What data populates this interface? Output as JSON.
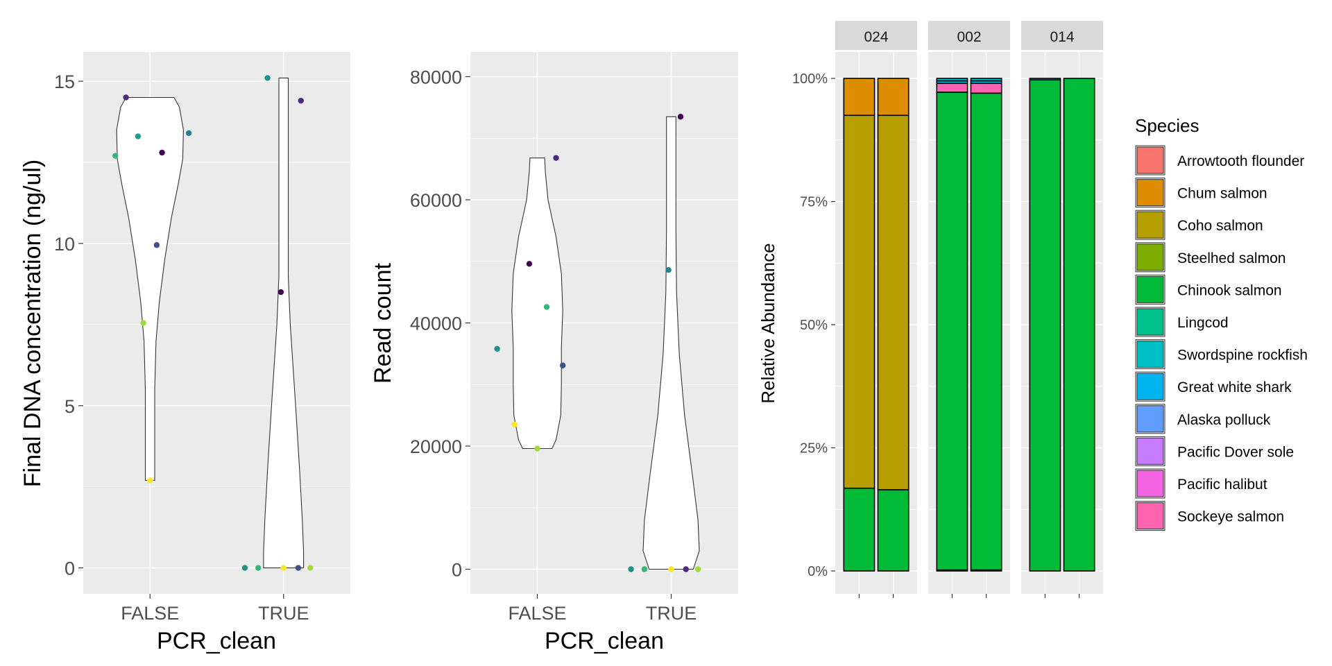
{
  "colors": {
    "viridis": [
      "#440154",
      "#3b528b",
      "#21908c",
      "#5dc863",
      "#fde725"
    ]
  },
  "chart_data": [
    {
      "type": "scatter",
      "subtype": "violin-with-jitter",
      "xlabel": "PCR_clean",
      "ylabel": "Final DNA concentration (ng/ul)",
      "categories": [
        "FALSE",
        "TRUE"
      ],
      "ylim": [
        -0.8,
        15.9
      ],
      "yticks": [
        0,
        5,
        10,
        15
      ],
      "ytick_labels": [
        "0",
        "5",
        "10",
        "15"
      ],
      "grid": true,
      "groups": [
        {
          "category": "FALSE",
          "points": [
            {
              "x_jitter": -0.18,
              "y": 14.5,
              "color": "#472d7b"
            },
            {
              "x_jitter": -0.26,
              "y": 12.7,
              "color": "#35b779"
            },
            {
              "x_jitter": -0.09,
              "y": 13.3,
              "color": "#1f9e89"
            },
            {
              "x_jitter": 0.09,
              "y": 12.8,
              "color": "#440154"
            },
            {
              "x_jitter": 0.29,
              "y": 13.4,
              "color": "#26828e"
            },
            {
              "x_jitter": 0.05,
              "y": 9.95,
              "color": "#3b528b"
            },
            {
              "x_jitter": -0.05,
              "y": 7.55,
              "color": "#a0da39"
            },
            {
              "x_jitter": 0.0,
              "y": 2.7,
              "color": "#fde725"
            }
          ]
        },
        {
          "category": "TRUE",
          "points": [
            {
              "x_jitter": -0.12,
              "y": 15.1,
              "color": "#21908c"
            },
            {
              "x_jitter": 0.13,
              "y": 14.4,
              "color": "#472d7b"
            },
            {
              "x_jitter": -0.02,
              "y": 8.5,
              "color": "#440154"
            },
            {
              "x_jitter": -0.29,
              "y": 0,
              "color": "#21908c"
            },
            {
              "x_jitter": -0.19,
              "y": 0,
              "color": "#35b779"
            },
            {
              "x_jitter": 0.0,
              "y": 0,
              "color": "#fde725"
            },
            {
              "x_jitter": 0.11,
              "y": 0,
              "color": "#3b528b"
            },
            {
              "x_jitter": 0.2,
              "y": 0,
              "color": "#a0da39"
            }
          ]
        }
      ]
    },
    {
      "type": "scatter",
      "subtype": "violin-with-jitter",
      "xlabel": "PCR_clean",
      "ylabel": "Read count",
      "categories": [
        "FALSE",
        "TRUE"
      ],
      "ylim": [
        -4000,
        84000
      ],
      "yticks": [
        0,
        20000,
        40000,
        60000,
        80000
      ],
      "ytick_labels": [
        "0",
        "20000",
        "40000",
        "60000",
        "80000"
      ],
      "grid": true,
      "groups": [
        {
          "category": "FALSE",
          "points": [
            {
              "x_jitter": 0.14,
              "y": 66800,
              "color": "#472d7b"
            },
            {
              "x_jitter": -0.06,
              "y": 49600,
              "color": "#440154"
            },
            {
              "x_jitter": 0.07,
              "y": 42600,
              "color": "#35b779"
            },
            {
              "x_jitter": -0.3,
              "y": 35800,
              "color": "#21908c"
            },
            {
              "x_jitter": 0.19,
              "y": 33100,
              "color": "#3b528b"
            },
            {
              "x_jitter": -0.17,
              "y": 23500,
              "color": "#fde725"
            },
            {
              "x_jitter": 0.0,
              "y": 19600,
              "color": "#a0da39"
            }
          ]
        },
        {
          "category": "TRUE",
          "points": [
            {
              "x_jitter": 0.07,
              "y": 73500,
              "color": "#440154"
            },
            {
              "x_jitter": -0.02,
              "y": 48600,
              "color": "#26828e"
            },
            {
              "x_jitter": -0.3,
              "y": 0,
              "color": "#21908c"
            },
            {
              "x_jitter": -0.2,
              "y": 0,
              "color": "#35b779"
            },
            {
              "x_jitter": 0.0,
              "y": 0,
              "color": "#fde725"
            },
            {
              "x_jitter": 0.11,
              "y": 0,
              "color": "#472d7b"
            },
            {
              "x_jitter": 0.2,
              "y": 0,
              "color": "#a0da39"
            }
          ]
        }
      ]
    },
    {
      "type": "bar",
      "subtype": "stacked-100-percent-faceted",
      "ylabel": "Relative Abundance",
      "xlabel": "",
      "ylim": [
        0,
        1
      ],
      "yticks": [
        0,
        0.25,
        0.5,
        0.75,
        1
      ],
      "ytick_labels": [
        "0%",
        "25%",
        "50%",
        "75%",
        "100%"
      ],
      "grid": true,
      "legend": {
        "title": "Species",
        "position": "right",
        "entries": [
          {
            "name": "Arrowtooth flounder",
            "color": "#f8766d"
          },
          {
            "name": "Chum salmon",
            "color": "#de8c00"
          },
          {
            "name": "Coho salmon",
            "color": "#b79f00"
          },
          {
            "name": "Steelhed salmon",
            "color": "#7cae00"
          },
          {
            "name": "Chinook salmon",
            "color": "#00ba38"
          },
          {
            "name": "Lingcod",
            "color": "#00c08b"
          },
          {
            "name": "Swordspine rockfish",
            "color": "#00bfc4"
          },
          {
            "name": "Great white shark",
            "color": "#00b4f0"
          },
          {
            "name": "Alaska polluck",
            "color": "#619cff"
          },
          {
            "name": "Pacific Dover sole",
            "color": "#c77cff"
          },
          {
            "name": "Pacific halibut",
            "color": "#f564e3"
          },
          {
            "name": "Sockeye salmon",
            "color": "#ff64b0"
          }
        ]
      },
      "facets": [
        {
          "label": "024",
          "bars": [
            {
              "segments": [
                {
                  "species": "Chinook salmon",
                  "value": 0.168
                },
                {
                  "species": "Coho salmon",
                  "value": 0.757
                },
                {
                  "species": "Chum salmon",
                  "value": 0.075
                }
              ]
            },
            {
              "segments": [
                {
                  "species": "Chinook salmon",
                  "value": 0.165
                },
                {
                  "species": "Coho salmon",
                  "value": 0.76
                },
                {
                  "species": "Chum salmon",
                  "value": 0.075
                }
              ]
            }
          ]
        },
        {
          "label": "002",
          "bars": [
            {
              "segments": [
                {
                  "species": "Alaska polluck",
                  "value": 0.002
                },
                {
                  "species": "Chinook salmon",
                  "value": 0.97
                },
                {
                  "species": "Sockeye salmon",
                  "value": 0.018
                },
                {
                  "species": "Great white shark",
                  "value": 0.005
                },
                {
                  "species": "Swordspine rockfish",
                  "value": 0.005
                }
              ]
            },
            {
              "segments": [
                {
                  "species": "Alaska polluck",
                  "value": 0.002
                },
                {
                  "species": "Chinook salmon",
                  "value": 0.968
                },
                {
                  "species": "Sockeye salmon",
                  "value": 0.02
                },
                {
                  "species": "Great white shark",
                  "value": 0.005
                },
                {
                  "species": "Swordspine rockfish",
                  "value": 0.005
                }
              ]
            }
          ]
        },
        {
          "label": "014",
          "bars": [
            {
              "segments": [
                {
                  "species": "Chinook salmon",
                  "value": 0.997
                },
                {
                  "species": "Alaska polluck",
                  "value": 0.003
                }
              ]
            },
            {
              "segments": [
                {
                  "species": "Chinook salmon",
                  "value": 1.0
                }
              ]
            }
          ]
        }
      ]
    }
  ]
}
